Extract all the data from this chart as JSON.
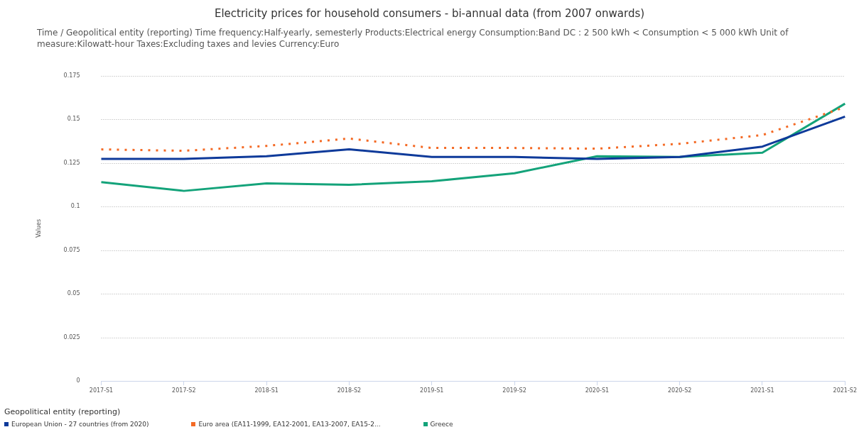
{
  "chart_data": {
    "type": "line",
    "title": "Electricity prices for household consumers - bi-annual data (from 2007 onwards)",
    "subtitle": "Time / Geopolitical entity (reporting)  Time frequency:Half-yearly, semesterly  Products:Electrical energy  Consumption:Band DC : 2 500 kWh < Consumption < 5 000 kWh  Unit of measure:Kilowatt-hour  Taxes:Excluding taxes and levies  Currency:Euro",
    "ylabel": "Values",
    "legend_title": "Geopolitical entity (reporting)",
    "categories": [
      "2017-S1",
      "2017-S2",
      "2018-S1",
      "2018-S2",
      "2019-S1",
      "2019-S2",
      "2020-S1",
      "2020-S2",
      "2021-S1",
      "2021-S2"
    ],
    "series": [
      {
        "name": "European Union - 27 countries (from 2020)",
        "color": "#0e3a9a",
        "line_style": "solid",
        "values": [
          0.1273,
          0.1273,
          0.1289,
          0.1328,
          0.1285,
          0.1285,
          0.1273,
          0.1285,
          0.1344,
          0.1516
        ]
      },
      {
        "name": "Euro area (EA11-1999, EA12-2001, EA13-2007, EA15-2...",
        "color": "#f46a25",
        "line_style": "dotted",
        "values": [
          0.1328,
          0.132,
          0.1348,
          0.139,
          0.1336,
          0.1336,
          0.1332,
          0.136,
          0.141,
          0.157
        ]
      },
      {
        "name": "Greece",
        "color": "#14a37a",
        "line_style": "solid",
        "values": [
          0.114,
          0.109,
          0.1133,
          0.1125,
          0.1145,
          0.1191,
          0.1289,
          0.1285,
          0.1309,
          0.159
        ]
      }
    ],
    "ylim": [
      0,
      0.175
    ],
    "yticks": [
      0,
      0.025,
      0.05,
      {
        "value": 0.075,
        "label": "0.075"
      },
      0.1,
      0.125,
      0.15,
      0.175
    ],
    "grid": "y",
    "legend": "bottom left",
    "marker": "none"
  }
}
